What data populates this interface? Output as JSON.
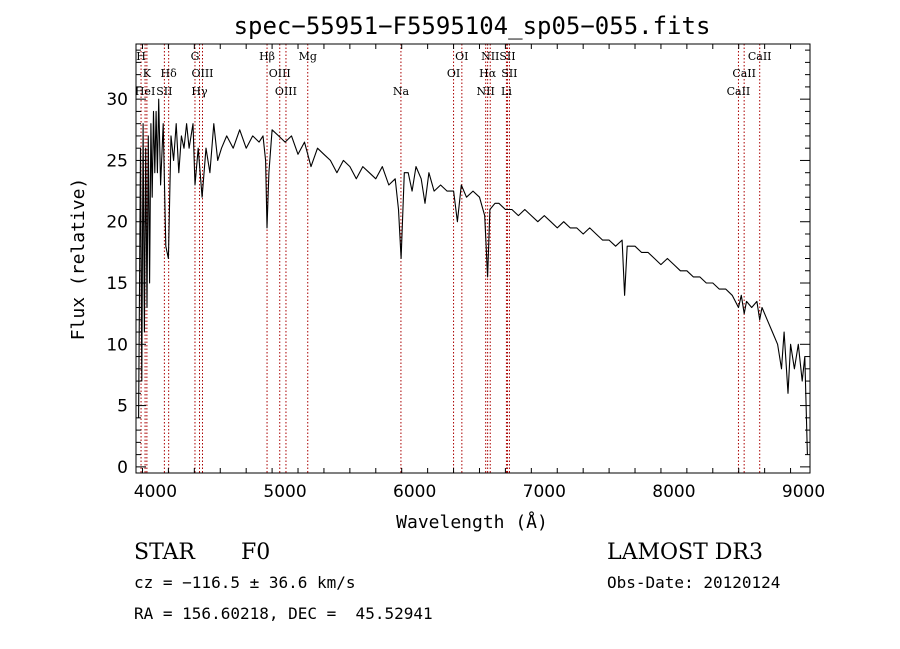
{
  "chart_data": {
    "type": "line",
    "title": "spec−55951−F5595104_sp05−055.fits",
    "xlabel": "Wavelength (Å)",
    "ylabel": "Flux (relative)",
    "xlim": [
      3850,
      9050
    ],
    "ylim": [
      -0.5,
      34.5
    ],
    "xticks": [
      4000,
      5000,
      6000,
      7000,
      8000,
      9000
    ],
    "yticks": [
      0,
      5,
      10,
      15,
      20,
      25,
      30
    ],
    "series": [
      {
        "name": "flux",
        "points": [
          [
            3870,
            4
          ],
          [
            3885,
            26
          ],
          [
            3895,
            7
          ],
          [
            3905,
            28
          ],
          [
            3915,
            11
          ],
          [
            3925,
            26
          ],
          [
            3935,
            13
          ],
          [
            3945,
            27
          ],
          [
            3955,
            15
          ],
          [
            3965,
            28
          ],
          [
            3975,
            22
          ],
          [
            3985,
            29
          ],
          [
            3995,
            24
          ],
          [
            4005,
            29
          ],
          [
            4015,
            24
          ],
          [
            4025,
            30
          ],
          [
            4040,
            23
          ],
          [
            4060,
            28
          ],
          [
            4080,
            18
          ],
          [
            4100,
            17
          ],
          [
            4120,
            27
          ],
          [
            4140,
            25
          ],
          [
            4160,
            28
          ],
          [
            4180,
            24
          ],
          [
            4200,
            27
          ],
          [
            4220,
            26
          ],
          [
            4240,
            28
          ],
          [
            4260,
            26
          ],
          [
            4290,
            28
          ],
          [
            4305,
            23
          ],
          [
            4330,
            26
          ],
          [
            4360,
            22
          ],
          [
            4390,
            26
          ],
          [
            4420,
            24
          ],
          [
            4450,
            28
          ],
          [
            4480,
            25
          ],
          [
            4510,
            26
          ],
          [
            4550,
            27
          ],
          [
            4600,
            26
          ],
          [
            4650,
            27.5
          ],
          [
            4700,
            26
          ],
          [
            4750,
            27
          ],
          [
            4800,
            26.5
          ],
          [
            4830,
            27
          ],
          [
            4850,
            25
          ],
          [
            4861,
            19.5
          ],
          [
            4875,
            24
          ],
          [
            4900,
            27.5
          ],
          [
            4950,
            27
          ],
          [
            5000,
            26.5
          ],
          [
            5050,
            27
          ],
          [
            5100,
            25.5
          ],
          [
            5150,
            26.5
          ],
          [
            5200,
            24.5
          ],
          [
            5250,
            26
          ],
          [
            5300,
            25.5
          ],
          [
            5350,
            25
          ],
          [
            5400,
            24
          ],
          [
            5450,
            25
          ],
          [
            5500,
            24.5
          ],
          [
            5550,
            23.5
          ],
          [
            5600,
            24.5
          ],
          [
            5650,
            24
          ],
          [
            5700,
            23.5
          ],
          [
            5750,
            24.5
          ],
          [
            5800,
            23
          ],
          [
            5850,
            23.5
          ],
          [
            5875,
            21
          ],
          [
            5895,
            17
          ],
          [
            5920,
            24
          ],
          [
            5950,
            24
          ],
          [
            5980,
            22.5
          ],
          [
            6010,
            24.5
          ],
          [
            6050,
            23.5
          ],
          [
            6080,
            21.5
          ],
          [
            6110,
            24
          ],
          [
            6150,
            22.5
          ],
          [
            6200,
            23
          ],
          [
            6250,
            22.5
          ],
          [
            6300,
            22.5
          ],
          [
            6330,
            20
          ],
          [
            6360,
            23
          ],
          [
            6400,
            22
          ],
          [
            6450,
            22.5
          ],
          [
            6500,
            22
          ],
          [
            6540,
            20.5
          ],
          [
            6563,
            15.5
          ],
          [
            6580,
            21
          ],
          [
            6620,
            21.5
          ],
          [
            6650,
            21.5
          ],
          [
            6700,
            21
          ],
          [
            6750,
            21
          ],
          [
            6800,
            20.5
          ],
          [
            6850,
            21
          ],
          [
            6900,
            20.5
          ],
          [
            6950,
            20
          ],
          [
            7000,
            20.5
          ],
          [
            7050,
            20
          ],
          [
            7100,
            19.5
          ],
          [
            7150,
            20
          ],
          [
            7200,
            19.5
          ],
          [
            7250,
            19.5
          ],
          [
            7300,
            19
          ],
          [
            7350,
            19.5
          ],
          [
            7400,
            19
          ],
          [
            7450,
            18.5
          ],
          [
            7500,
            18.5
          ],
          [
            7550,
            18
          ],
          [
            7600,
            18.5
          ],
          [
            7620,
            14
          ],
          [
            7640,
            18
          ],
          [
            7700,
            18
          ],
          [
            7750,
            17.5
          ],
          [
            7800,
            17.5
          ],
          [
            7850,
            17
          ],
          [
            7900,
            16.5
          ],
          [
            7950,
            17
          ],
          [
            8000,
            16.5
          ],
          [
            8050,
            16
          ],
          [
            8100,
            16
          ],
          [
            8150,
            15.5
          ],
          [
            8200,
            15.5
          ],
          [
            8250,
            15
          ],
          [
            8300,
            15
          ],
          [
            8350,
            14.5
          ],
          [
            8400,
            14.5
          ],
          [
            8450,
            14
          ],
          [
            8498,
            13
          ],
          [
            8520,
            14
          ],
          [
            8542,
            12.5
          ],
          [
            8560,
            13.5
          ],
          [
            8600,
            13
          ],
          [
            8640,
            13.5
          ],
          [
            8662,
            12
          ],
          [
            8680,
            13
          ],
          [
            8720,
            12
          ],
          [
            8760,
            11
          ],
          [
            8800,
            10
          ],
          [
            8830,
            8
          ],
          [
            8850,
            11
          ],
          [
            8880,
            6
          ],
          [
            8900,
            10
          ],
          [
            8930,
            8
          ],
          [
            8960,
            10
          ],
          [
            8990,
            7
          ],
          [
            9010,
            9
          ],
          [
            9030,
            1
          ]
        ]
      }
    ],
    "line_annotations": [
      {
        "label": "H",
        "wavelength": 3889,
        "row": 0
      },
      {
        "label": "K",
        "wavelength": 3934,
        "row": 1
      },
      {
        "label": "HeI",
        "wavelength": 3920,
        "row": 2
      },
      {
        "label": "SII",
        "wavelength": 4069,
        "row": 2
      },
      {
        "label": "Hδ",
        "wavelength": 4102,
        "row": 1
      },
      {
        "label": "G",
        "wavelength": 4305,
        "row": 0
      },
      {
        "label": "OIII",
        "wavelength": 4363,
        "row": 1
      },
      {
        "label": "Hγ",
        "wavelength": 4340,
        "row": 2
      },
      {
        "label": "Hβ",
        "wavelength": 4861,
        "row": 0
      },
      {
        "label": "OIII",
        "wavelength": 4959,
        "row": 1
      },
      {
        "label": "OIII",
        "wavelength": 5007,
        "row": 2
      },
      {
        "label": "Mg",
        "wavelength": 5175,
        "row": 0
      },
      {
        "label": "Na",
        "wavelength": 5894,
        "row": 2
      },
      {
        "label": "OI",
        "wavelength": 6364,
        "row": 0
      },
      {
        "label": "OI",
        "wavelength": 6300,
        "row": 1
      },
      {
        "label": "NII",
        "wavelength": 6583,
        "row": 0
      },
      {
        "label": "SII",
        "wavelength": 6716,
        "row": 0
      },
      {
        "label": "Hα",
        "wavelength": 6563,
        "row": 1
      },
      {
        "label": "SII",
        "wavelength": 6731,
        "row": 1
      },
      {
        "label": "NII",
        "wavelength": 6548,
        "row": 2
      },
      {
        "label": "Li",
        "wavelength": 6708,
        "row": 2
      },
      {
        "label": "CaII",
        "wavelength": 8662,
        "row": 0
      },
      {
        "label": "CaII",
        "wavelength": 8542,
        "row": 1
      },
      {
        "label": "CaII",
        "wavelength": 8498,
        "row": 2
      }
    ]
  },
  "info": {
    "object_class": "STAR",
    "subclass": "F0",
    "survey": "LAMOST DR3",
    "redshift": "cz = −116.5 ± 36.6 km/s",
    "obs_date": "Obs-Date: 20120124",
    "coords": "RA = 156.60218, DEC =  45.52941"
  },
  "colors": {
    "spectrum": "#000000",
    "line_marker": "#aa0000",
    "axis": "#000000"
  }
}
